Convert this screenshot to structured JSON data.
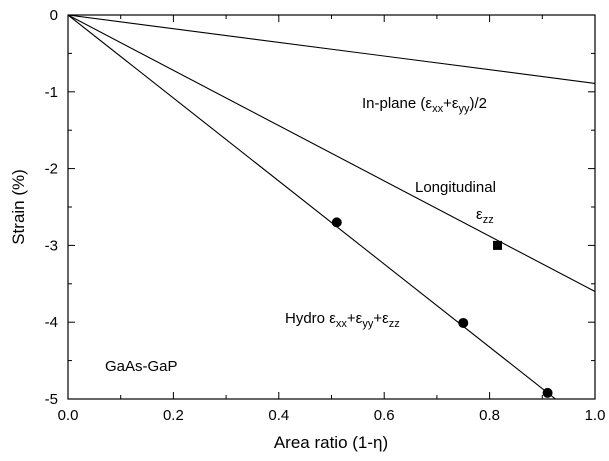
{
  "chart_data": {
    "type": "scatter",
    "xlabel": "Area ratio (1-η)",
    "ylabel": "Strain (%)",
    "xlim": [
      0.0,
      1.0
    ],
    "ylim": [
      -5,
      0
    ],
    "xticks": [
      "0.0",
      "0.2",
      "0.4",
      "0.6",
      "0.8",
      "1.0"
    ],
    "yticks": [
      "0",
      "-1",
      "-2",
      "-3",
      "-4",
      "-5"
    ],
    "grid": false,
    "lines": [
      {
        "name": "in-plane",
        "x": [
          0.0,
          1.0
        ],
        "y": [
          0.0,
          -0.89
        ]
      },
      {
        "name": "longitudinal",
        "x": [
          0.0,
          1.0
        ],
        "y": [
          0.0,
          -3.6
        ]
      },
      {
        "name": "hydro",
        "x": [
          0.0,
          0.925
        ],
        "y": [
          0.0,
          -5.0
        ]
      }
    ],
    "points": [
      {
        "marker": "circle",
        "x": 0.51,
        "y": -2.7
      },
      {
        "marker": "circle",
        "x": 0.75,
        "y": -4.01
      },
      {
        "marker": "circle",
        "x": 0.91,
        "y": -4.92
      },
      {
        "marker": "square",
        "x": 0.815,
        "y": -3.0
      }
    ],
    "annotations": {
      "inplane": {
        "prefix": "In-plane (",
        "e1": "ε",
        "s1": "xx",
        "plus": "+",
        "e2": "ε",
        "s2": "yy",
        "suffix": ")/2"
      },
      "longitudinal": {
        "label": "Longitudinal",
        "e": "ε",
        "s": "zz"
      },
      "hydro": {
        "prefix": "Hydro ",
        "e1": "ε",
        "s1": "xx",
        "p1": "+",
        "e2": "ε",
        "s2": "yy",
        "p2": "+",
        "e3": "ε",
        "s3": "zz"
      },
      "material": "GaAs-GaP"
    }
  }
}
